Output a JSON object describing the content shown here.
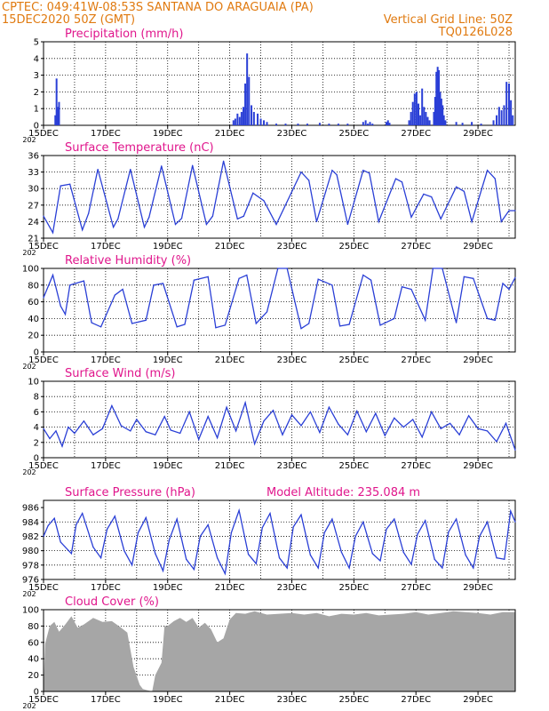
{
  "header": {
    "line1_left": "CPTEC:   049:41W-08:53S   SANTANA DO ARAGUAIA (PA)",
    "line2_left": "15DEC2020 50Z (GMT)",
    "line2_right": "Vertical Grid Line: 50Z",
    "line3_right": "TQ0126L028"
  },
  "x_axis": {
    "tick_labels": [
      "15DEC",
      "17DEC",
      "19DEC",
      "21DEC",
      "23DEC",
      "25DEC",
      "27DEC",
      "29DEC"
    ],
    "year_label": "202",
    "range_days": [
      0,
      15.2
    ]
  },
  "colors": {
    "line": "#2a3fd6",
    "bar": "#2a3fd6",
    "cloud": "#a6a6a6",
    "grid": "#000000",
    "title": "#e0168c",
    "header": "#e07a10"
  },
  "chart_data": [
    {
      "type": "bar",
      "title": "Precipitation (mm/h)",
      "ylim": [
        0,
        5
      ],
      "yticks": [
        0,
        1,
        2,
        3,
        4,
        5
      ],
      "grid": true,
      "x": [
        0.38,
        0.42,
        0.46,
        0.5,
        6.12,
        6.18,
        6.25,
        6.32,
        6.38,
        6.44,
        6.5,
        6.56,
        6.62,
        6.7,
        6.78,
        6.9,
        7.0,
        7.1,
        7.2,
        7.5,
        7.8,
        8.2,
        8.5,
        8.9,
        9.2,
        9.5,
        9.8,
        10.3,
        10.38,
        10.45,
        10.52,
        10.6,
        11.05,
        11.1,
        11.15,
        11.78,
        11.84,
        11.9,
        11.96,
        12.02,
        12.08,
        12.14,
        12.2,
        12.26,
        12.32,
        12.38,
        12.44,
        12.58,
        12.62,
        12.66,
        12.7,
        12.74,
        12.78,
        12.82,
        12.86,
        12.9,
        12.95,
        13.3,
        13.5,
        13.8,
        14.1,
        14.5,
        14.6,
        14.68,
        14.76,
        14.84,
        14.92,
        15.0,
        15.06,
        15.12
      ],
      "values": [
        0.6,
        2.8,
        1.1,
        1.4,
        0.3,
        0.4,
        0.7,
        0.5,
        0.8,
        1.1,
        2.5,
        4.3,
        2.9,
        1.2,
        0.8,
        0.7,
        0.4,
        0.3,
        0.2,
        0.1,
        0.1,
        0.1,
        0.1,
        0.15,
        0.1,
        0.1,
        0.1,
        0.2,
        0.3,
        0.1,
        0.2,
        0.1,
        0.2,
        0.3,
        0.15,
        0.3,
        0.8,
        1.4,
        1.9,
        2.0,
        1.3,
        0.6,
        2.2,
        1.1,
        0.8,
        0.5,
        0.3,
        0.8,
        1.7,
        3.2,
        3.5,
        3.3,
        2.0,
        1.6,
        1.2,
        0.6,
        0.3,
        0.2,
        0.15,
        0.2,
        0.1,
        0.3,
        0.6,
        1.1,
        0.9,
        1.2,
        2.6,
        2.5,
        1.5,
        0.6
      ]
    },
    {
      "type": "line",
      "title": "Surface Temperature (nC)",
      "ylim": [
        21,
        36
      ],
      "yticks": [
        21,
        24,
        27,
        30,
        33,
        36
      ],
      "grid": true,
      "x": [
        0.0,
        0.3,
        0.55,
        0.85,
        1.25,
        1.45,
        1.75,
        2.25,
        2.4,
        2.8,
        3.25,
        3.4,
        3.8,
        4.25,
        4.45,
        4.8,
        5.25,
        5.45,
        5.8,
        6.25,
        6.45,
        6.75,
        7.1,
        7.5,
        8.3,
        8.55,
        8.8,
        9.3,
        9.45,
        9.8,
        10.3,
        10.5,
        10.8,
        11.35,
        11.55,
        11.85,
        12.25,
        12.5,
        12.8,
        13.3,
        13.55,
        13.8,
        14.3,
        14.55,
        14.75,
        15.0,
        15.2
      ],
      "values": [
        25,
        22,
        30.5,
        30.8,
        22.5,
        25.5,
        33.5,
        23,
        24.5,
        33.5,
        23,
        24.8,
        34.1,
        23.5,
        24.6,
        34.2,
        23.5,
        25.0,
        35.0,
        24.5,
        25.0,
        29.2,
        27.8,
        23.5,
        33.0,
        31.5,
        24.0,
        33.3,
        32.5,
        23.5,
        33.3,
        32.8,
        24.0,
        31.8,
        31.2,
        24.8,
        29.0,
        28.5,
        24.5,
        30.3,
        29.5,
        24.0,
        33.3,
        31.8,
        24.0,
        26.0,
        26.0
      ]
    },
    {
      "type": "line",
      "title": "Relative Humidity (%)",
      "ylim": [
        0,
        100
      ],
      "yticks": [
        0,
        20,
        40,
        60,
        80,
        100
      ],
      "grid": true,
      "x": [
        0.0,
        0.3,
        0.55,
        0.7,
        0.85,
        1.3,
        1.55,
        1.85,
        2.3,
        2.55,
        2.85,
        3.3,
        3.55,
        3.85,
        4.3,
        4.55,
        4.85,
        5.3,
        5.55,
        5.85,
        6.3,
        6.55,
        6.85,
        7.2,
        7.55,
        7.85,
        8.3,
        8.55,
        8.85,
        9.3,
        9.55,
        9.85,
        10.3,
        10.55,
        10.85,
        11.3,
        11.55,
        11.85,
        12.3,
        12.55,
        12.85,
        13.3,
        13.55,
        13.85,
        14.3,
        14.55,
        14.8,
        15.0,
        15.2
      ],
      "values": [
        65,
        92,
        55,
        45,
        80,
        85,
        35,
        30,
        68,
        75,
        34,
        38,
        80,
        82,
        30,
        33,
        86,
        90,
        29,
        32,
        88,
        92,
        34,
        48,
        100,
        100,
        28,
        34,
        87,
        80,
        31,
        33,
        92,
        86,
        32,
        40,
        78,
        75,
        38,
        100,
        100,
        35,
        90,
        88,
        40,
        38,
        82,
        75,
        89
      ]
    },
    {
      "type": "line",
      "title": "Surface Wind (m/s)",
      "ylim": [
        0,
        10
      ],
      "yticks": [
        0,
        2,
        4,
        6,
        8,
        10
      ],
      "grid": true,
      "x": [
        0.0,
        0.2,
        0.4,
        0.6,
        0.8,
        1.0,
        1.3,
        1.6,
        1.9,
        2.2,
        2.5,
        2.8,
        3.0,
        3.3,
        3.6,
        3.9,
        4.1,
        4.4,
        4.7,
        5.0,
        5.3,
        5.6,
        5.9,
        6.2,
        6.5,
        6.8,
        7.1,
        7.4,
        7.7,
        8.0,
        8.3,
        8.6,
        8.9,
        9.2,
        9.5,
        9.8,
        10.1,
        10.4,
        10.7,
        11.0,
        11.3,
        11.6,
        11.9,
        12.2,
        12.5,
        12.8,
        13.1,
        13.4,
        13.7,
        14.0,
        14.3,
        14.6,
        14.9,
        15.2
      ],
      "values": [
        3.8,
        2.5,
        3.5,
        1.5,
        4.0,
        3.2,
        4.8,
        3.0,
        3.8,
        6.8,
        4.2,
        3.5,
        5.0,
        3.4,
        3.0,
        5.4,
        3.6,
        3.2,
        6.0,
        2.4,
        5.4,
        2.6,
        6.6,
        3.5,
        7.2,
        1.8,
        4.8,
        6.2,
        3.0,
        5.6,
        4.2,
        6.0,
        3.3,
        6.6,
        4.4,
        3.0,
        6.1,
        3.4,
        5.8,
        2.9,
        5.2,
        4.0,
        5.0,
        2.7,
        6.0,
        3.8,
        4.5,
        3.0,
        5.5,
        3.8,
        3.5,
        2.1,
        4.5,
        1.0
      ]
    },
    {
      "type": "line",
      "title": "Surface Pressure (hPa)",
      "subtitle": "Model Altitude: 235.084  m",
      "ylim": [
        976,
        987
      ],
      "yticks": [
        976,
        978,
        980,
        982,
        984,
        986
      ],
      "grid": true,
      "x": [
        0.0,
        0.15,
        0.35,
        0.55,
        0.9,
        1.05,
        1.25,
        1.6,
        1.85,
        2.05,
        2.3,
        2.6,
        2.85,
        3.05,
        3.3,
        3.6,
        3.85,
        4.05,
        4.3,
        4.6,
        4.85,
        5.05,
        5.3,
        5.6,
        5.85,
        6.05,
        6.3,
        6.6,
        6.85,
        7.05,
        7.3,
        7.6,
        7.85,
        8.05,
        8.3,
        8.6,
        8.85,
        9.05,
        9.3,
        9.6,
        9.85,
        10.05,
        10.3,
        10.6,
        10.85,
        11.05,
        11.3,
        11.6,
        11.85,
        12.05,
        12.3,
        12.6,
        12.85,
        13.05,
        13.3,
        13.6,
        13.85,
        14.05,
        14.3,
        14.6,
        14.85,
        15.05,
        15.2
      ],
      "values": [
        982.0,
        983.5,
        984.5,
        981.2,
        979.6,
        983.6,
        985.2,
        980.5,
        979.0,
        983.0,
        984.8,
        980.0,
        978.0,
        982.5,
        984.6,
        979.6,
        977.2,
        981.5,
        984.4,
        978.8,
        977.4,
        982.0,
        983.6,
        979.0,
        976.8,
        982.5,
        985.6,
        979.5,
        978.2,
        983.2,
        985.2,
        979.0,
        977.6,
        983.3,
        985.0,
        979.4,
        977.6,
        982.5,
        984.4,
        979.8,
        977.6,
        982.0,
        984.0,
        979.6,
        978.6,
        983.0,
        984.4,
        979.8,
        978.1,
        982.3,
        984.2,
        978.8,
        977.6,
        982.6,
        984.4,
        979.4,
        977.6,
        982.0,
        984.0,
        979.0,
        978.8,
        985.5,
        984.0
      ]
    },
    {
      "type": "area",
      "title": "Cloud Cover (%)",
      "ylim": [
        0,
        100
      ],
      "yticks": [
        0,
        20,
        40,
        60,
        80,
        100
      ],
      "grid": true,
      "x": [
        0.0,
        0.05,
        0.2,
        0.35,
        0.5,
        0.7,
        0.9,
        1.1,
        1.3,
        1.6,
        1.9,
        2.2,
        2.5,
        2.7,
        2.9,
        3.1,
        3.2,
        3.3,
        3.4,
        3.5,
        3.6,
        3.8,
        3.9,
        4.0,
        4.2,
        4.4,
        4.6,
        4.8,
        5.0,
        5.2,
        5.4,
        5.6,
        5.8,
        6.0,
        6.2,
        6.5,
        6.8,
        7.2,
        7.6,
        8.0,
        8.4,
        8.8,
        9.2,
        9.6,
        10.0,
        10.4,
        10.8,
        11.2,
        11.6,
        12.0,
        12.4,
        12.8,
        13.2,
        13.6,
        14.0,
        14.4,
        14.8,
        15.2
      ],
      "values": [
        0,
        58,
        80,
        85,
        73,
        82,
        92,
        78,
        82,
        90,
        85,
        86,
        78,
        72,
        30,
        8,
        3,
        2,
        1,
        0,
        20,
        35,
        80,
        80,
        86,
        90,
        85,
        90,
        78,
        84,
        76,
        60,
        65,
        88,
        96,
        95,
        98,
        94,
        95,
        96,
        94,
        96,
        92,
        95,
        94,
        96,
        93,
        94,
        95,
        97,
        94,
        96,
        98,
        97,
        96,
        94,
        97,
        97
      ]
    }
  ]
}
